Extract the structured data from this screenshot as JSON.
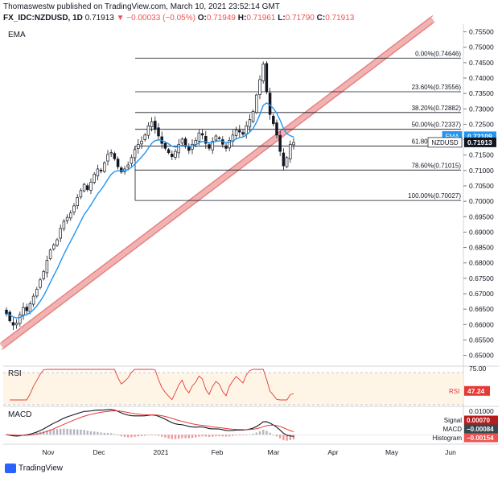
{
  "header": {
    "line1": "Thomaswestw published on TradingView.com, March 10, 2021 23:52:14 GMT",
    "symbol": "FX_IDC:NZDUSD, 1D",
    "last": "0.71913",
    "change": "▼ −0.00033 (−0.05%)",
    "o_label": "O:",
    "o": "0.71949",
    "h_label": "H:",
    "h": "0.71961",
    "l_label": "L:",
    "l": "0.71790",
    "c_label": "C:",
    "c": "0.71913"
  },
  "footer_logo": "TradingView",
  "colors": {
    "up": "#26a69a",
    "down": "#ef5350",
    "candle": "#131722",
    "ema": "#2196f3",
    "channel": "#e57373",
    "rsi": "#e53935",
    "macd": "#131722",
    "signal": "#e53935",
    "hist": "#b2b5be",
    "hist_neg": "#ef9a9a",
    "fib": "#131722"
  },
  "chart_data": [
    {
      "type": "line",
      "title": "EMA",
      "x_ticks": [
        "Nov",
        "Dec",
        "2021",
        "Feb",
        "Mar",
        "Apr",
        "May",
        "Jun"
      ],
      "ylim": [
        0.6465,
        0.7575
      ],
      "y_ticks": [
        0.65,
        0.655,
        0.66,
        0.665,
        0.67,
        0.675,
        0.68,
        0.685,
        0.69,
        0.695,
        0.7,
        0.705,
        0.71,
        0.715,
        0.72,
        0.725,
        0.73,
        0.735,
        0.74,
        0.745,
        0.75,
        0.755
      ],
      "y_tick_labels": [
        "0.65000",
        "0.65500",
        "0.66000",
        "0.66500",
        "0.67000",
        "0.67500",
        "0.68000",
        "0.68500",
        "0.69000",
        "0.69500",
        "0.70000",
        "0.70500",
        "0.71000",
        "0.71500",
        "0.72000",
        "0.72500",
        "0.73000",
        "0.73500",
        "0.74000",
        "0.74500",
        "0.75000",
        "0.75500"
      ],
      "fib_levels": [
        {
          "label": "0.00%(0.74646)",
          "value": 0.74646
        },
        {
          "label": "23.60%(0.73556)",
          "value": 0.73556
        },
        {
          "label": "38.20%(0.72882)",
          "value": 0.72882
        },
        {
          "label": "50.00%(0.72337)",
          "value": 0.72337
        },
        {
          "label": "61.80%(0.71791)",
          "value": 0.71791
        },
        {
          "label": "78.60%(0.71015)",
          "value": 0.71015
        },
        {
          "label": "100.00%(0.70027)",
          "value": 0.70027
        }
      ],
      "price_tags": [
        {
          "name": "EMA",
          "value": "0.72109",
          "y": 0.72109
        },
        {
          "name": "NZDUSD",
          "value": "0.71913",
          "y": 0.71913
        }
      ],
      "ohlc_anchor_closes": [
        0.6635,
        0.6612,
        0.6598,
        0.6605,
        0.6632,
        0.6655,
        0.6645,
        0.6668,
        0.6692,
        0.6715,
        0.6745,
        0.6772,
        0.6808,
        0.6842,
        0.6858,
        0.6875,
        0.6912,
        0.6935,
        0.6948,
        0.6962,
        0.6985,
        0.7012,
        0.7035,
        0.7055,
        0.7038,
        0.7062,
        0.7088,
        0.7105,
        0.7098,
        0.7125,
        0.7152,
        0.7158,
        0.7138,
        0.7112,
        0.7095,
        0.7105,
        0.7118,
        0.7142,
        0.7168,
        0.7185,
        0.7195,
        0.7215,
        0.7245,
        0.7258,
        0.7235,
        0.7212,
        0.7188,
        0.7172,
        0.7158,
        0.7145,
        0.7162,
        0.7185,
        0.7202,
        0.7178,
        0.7165,
        0.7185,
        0.7198,
        0.7222,
        0.7215,
        0.7188,
        0.7172,
        0.7195,
        0.7212,
        0.7205,
        0.7185,
        0.7172,
        0.7198,
        0.7215,
        0.7232,
        0.7225,
        0.7218,
        0.7245,
        0.7265,
        0.7292,
        0.7345,
        0.7395,
        0.7445,
        0.7355,
        0.7282,
        0.7252,
        0.7215,
        0.7162,
        0.7115,
        0.7142,
        0.7185,
        0.7191
      ]
    },
    {
      "type": "line",
      "title": "RSI",
      "ylim": [
        28,
        78
      ],
      "y_ticks": [
        75
      ],
      "y_tick_labels": [
        "75.00"
      ],
      "band": [
        30,
        70
      ],
      "value_tag": {
        "name": "RSI",
        "value": "47.24"
      }
    },
    {
      "type": "line",
      "title": "MACD",
      "y_ticks": [
        0.01
      ],
      "y_tick_labels": [
        "0.01000"
      ],
      "value_tags": [
        {
          "name": "Signal",
          "value": "0.00070"
        },
        {
          "name": "MACD",
          "value": "−0.00084"
        },
        {
          "name": "Histogram",
          "value": "−0.00154"
        }
      ]
    }
  ]
}
